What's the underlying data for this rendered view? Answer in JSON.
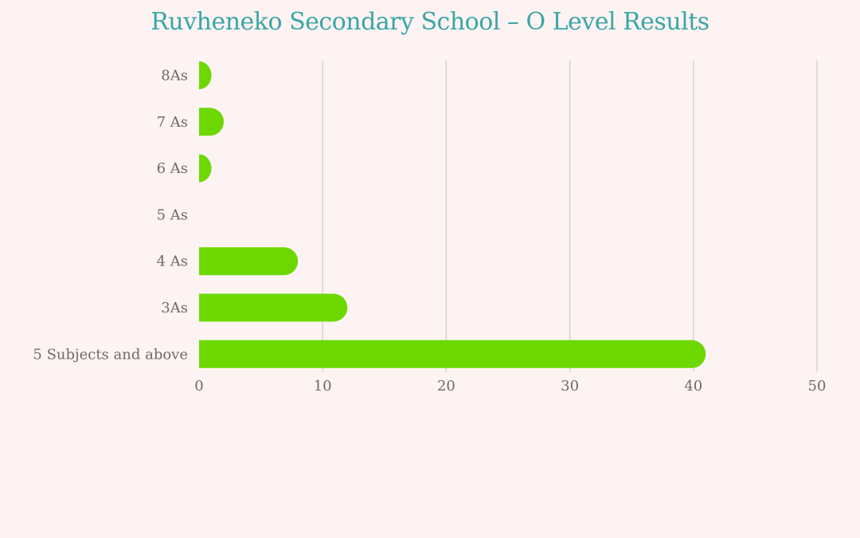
{
  "chart_data": {
    "type": "bar",
    "orientation": "horizontal",
    "title": "Ruvheneko Secondary School –  O Level Results",
    "categories": [
      "8As",
      "7 As",
      "6 As",
      "5 As",
      "4 As",
      "3As",
      "5 Subjects and above"
    ],
    "values": [
      1,
      2,
      1,
      0,
      8,
      12,
      41
    ],
    "xlim": [
      0,
      50
    ],
    "xticks": [
      "0",
      "10",
      "20",
      "30",
      "40",
      "50"
    ],
    "xlabel": "",
    "ylabel": "",
    "grid": "vertical",
    "legend": "none"
  },
  "colors": {
    "background": "#fcf3f2",
    "bar": "#6dd800",
    "title": "#3aa6a6",
    "grid": "#d8d3d3",
    "axis_text": "#6b6b6b"
  }
}
